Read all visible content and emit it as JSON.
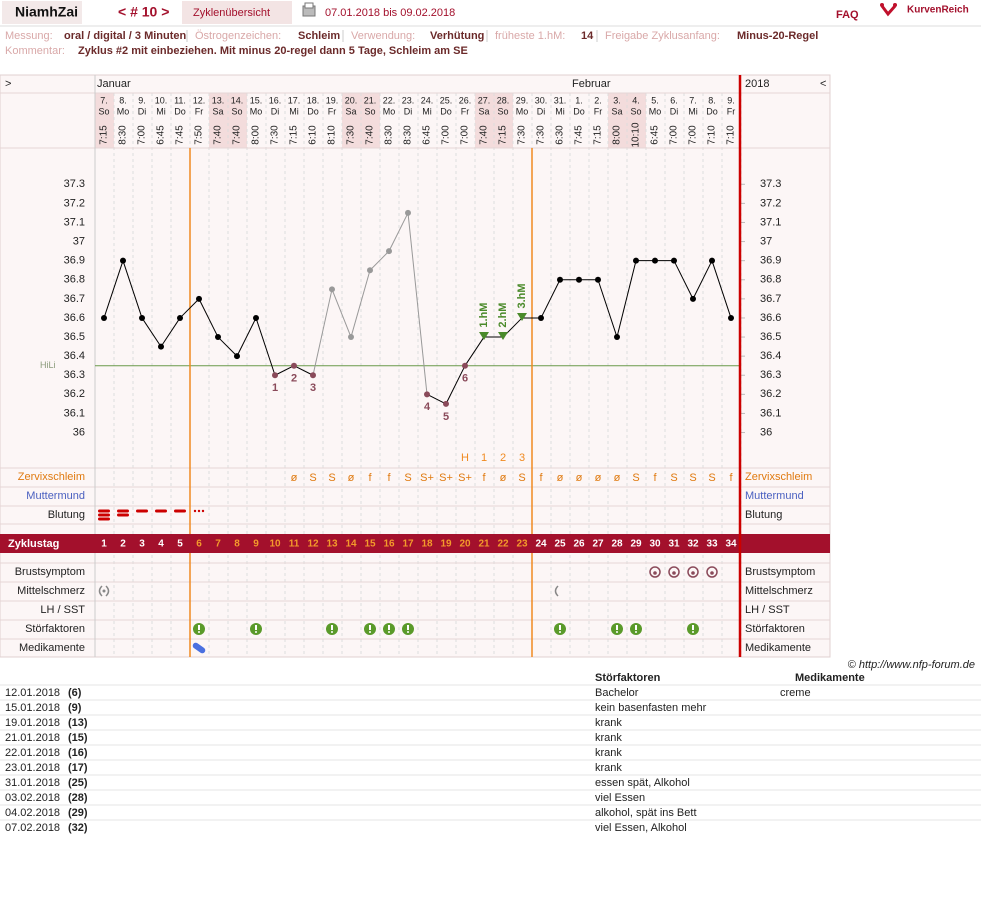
{
  "header": {
    "user": "NiamhZai",
    "cycle_nav": "< # 10 >",
    "overview": "Zyklenübersicht",
    "range": "07.01.2018 bis 09.02.2018",
    "faq": "FAQ",
    "brand": "KurvenReich"
  },
  "info": [
    {
      "label": "Messung:",
      "value": "oral / digital / 3 Minuten"
    },
    {
      "label": "Östrogenzeichen:",
      "value": "Schleim"
    },
    {
      "label": "Verwendung:",
      "value": "Verhütung"
    },
    {
      "label": "früheste 1.hM:",
      "value": "14"
    },
    {
      "label": "Freigabe Zyklusanfang:",
      "value": "Minus-20-Regel"
    }
  ],
  "comment": {
    "label": "Kommentar:",
    "value": "Zyklus #2  mit einbeziehen. Mit minus 20-regel dann 5 Tage,  Schleim am SE"
  },
  "chart_data": {
    "type": "line",
    "nav": [
      ">",
      "<"
    ],
    "months": [
      "Januar",
      "Februar"
    ],
    "year": "2018",
    "dates": [
      "7.",
      "8.",
      "9.",
      "10.",
      "11.",
      "12.",
      "13.",
      "14.",
      "15.",
      "16.",
      "17.",
      "18.",
      "19.",
      "20.",
      "21.",
      "22.",
      "23.",
      "24.",
      "25.",
      "26.",
      "27.",
      "28.",
      "29.",
      "30.",
      "31.",
      "1.",
      "2.",
      "3.",
      "4.",
      "5.",
      "6.",
      "7.",
      "8.",
      "9."
    ],
    "weekdays": [
      "So",
      "Mo",
      "Di",
      "Mi",
      "Do",
      "Fr",
      "Sa",
      "So",
      "Mo",
      "Di",
      "Mi",
      "Do",
      "Fr",
      "Sa",
      "So",
      "Mo",
      "Di",
      "Mi",
      "Do",
      "Fr",
      "Sa",
      "So",
      "Mo",
      "Di",
      "Mi",
      "Do",
      "Fr",
      "Sa",
      "So",
      "Mo",
      "Di",
      "Mi",
      "Do",
      "Fr"
    ],
    "times": [
      "7:15",
      "8:30",
      "7:00",
      "6:45",
      "7:45",
      "7:50",
      "7:40",
      "7:40",
      "8:00",
      "7:30",
      "7:15",
      "6:10",
      "8:10",
      "7:30",
      "7:40",
      "8:30",
      "8:30",
      "6:45",
      "7:00",
      "7:00",
      "7:40",
      "7:15",
      "7:30",
      "7:30",
      "6:30",
      "7:45",
      "7:15",
      "8:00",
      "10:10",
      "6:45",
      "7:00",
      "7:00",
      "7:10",
      "7:10"
    ],
    "values": [
      36.6,
      36.9,
      36.6,
      36.45,
      36.6,
      36.7,
      36.5,
      36.4,
      36.6,
      36.3,
      36.35,
      36.3,
      36.75,
      36.5,
      36.85,
      36.95,
      37.15,
      36.2,
      36.15,
      36.35,
      36.5,
      36.5,
      36.6,
      36.6,
      36.8,
      36.8,
      36.8,
      36.5,
      36.9,
      36.9,
      36.9,
      36.7,
      36.9,
      36.6
    ],
    "line_color": "#000000",
    "point_colors": [
      "#000",
      "#000",
      "#000",
      "#000",
      "#000",
      "#000",
      "#000",
      "#000",
      "#000",
      "#8a4a5a",
      "#8a4a5a",
      "#8a4a5a",
      "#999",
      "#999",
      "#999",
      "#999",
      "#999",
      "#8a4a5a",
      "#8a4a5a",
      "#8a4a5a",
      "#4a8a2a",
      "#4a8a2a",
      "#4a8a2a",
      "#000",
      "#000",
      "#000",
      "#000",
      "#000",
      "#000",
      "#000",
      "#000",
      "#000",
      "#000",
      "#000"
    ],
    "point_labels": [
      null,
      null,
      null,
      null,
      null,
      null,
      null,
      null,
      null,
      "1",
      "2",
      "3",
      null,
      null,
      null,
      null,
      null,
      "4",
      "5",
      "6",
      null,
      null,
      null,
      null,
      null,
      null,
      null,
      null,
      null,
      null,
      null,
      null,
      null,
      null
    ],
    "hm_labels": [
      null,
      null,
      null,
      null,
      null,
      null,
      null,
      null,
      null,
      null,
      null,
      null,
      null,
      null,
      null,
      null,
      null,
      null,
      null,
      null,
      "1.hM",
      "2.hM",
      "3.hM",
      null,
      null,
      null,
      null,
      null,
      null,
      null,
      null,
      null,
      null,
      null
    ],
    "coverline": {
      "label": "HiLi",
      "value": 36.35
    },
    "ylim": [
      35.83,
      37.49
    ],
    "yticks": [
      36,
      36.1,
      36.2,
      36.3,
      36.4,
      36.5,
      36.6,
      36.7,
      36.8,
      36.9,
      37,
      37.1,
      37.2,
      37.3
    ],
    "cycle_days": [
      1,
      2,
      3,
      4,
      5,
      6,
      7,
      8,
      9,
      10,
      11,
      12,
      13,
      14,
      15,
      16,
      17,
      18,
      19,
      20,
      21,
      22,
      23,
      24,
      25,
      26,
      27,
      28,
      29,
      30,
      31,
      32,
      33,
      34
    ],
    "fertile_window": [
      6,
      23
    ],
    "row_labels": {
      "zervix": "Zervixschleim",
      "muttermund": "Muttermund",
      "blutung": "Blutung",
      "zyklustag": "Zyklustag",
      "brust": "Brustsymptom",
      "mittelschmerz": "Mittelschmerz",
      "lh": "LH / SST",
      "stoer": "Störfaktoren",
      "medi": "Medikamente"
    },
    "peak": [
      null,
      null,
      null,
      null,
      null,
      null,
      null,
      null,
      null,
      null,
      null,
      null,
      null,
      null,
      null,
      null,
      null,
      null,
      null,
      "H",
      "1",
      "2",
      "3",
      null,
      null,
      null,
      null,
      null,
      null,
      null,
      null,
      null,
      null,
      null
    ],
    "zervix": [
      null,
      null,
      null,
      null,
      null,
      null,
      null,
      null,
      null,
      null,
      "ø",
      "S",
      "S",
      "ø",
      "f",
      "f",
      "S",
      "S+",
      "S+",
      "S+",
      "f",
      "ø",
      "S",
      "f",
      "ø",
      "ø",
      "ø",
      "ø",
      "S",
      "f",
      "S",
      "S",
      "S",
      "f"
    ],
    "blutung": {
      "days": [
        1,
        2,
        3,
        4,
        5,
        6
      ],
      "levels": [
        3,
        2,
        1,
        1,
        1,
        0
      ]
    },
    "brust_days": [
      30,
      31,
      32,
      33
    ],
    "mittelschmerz_days": [
      1,
      25
    ],
    "stoer_days": [
      6,
      9,
      13,
      15,
      16,
      17,
      25,
      28,
      29,
      32
    ],
    "medi_days": [
      6
    ]
  },
  "footer": {
    "copyright": "© http://www.nfp-forum.de"
  },
  "notes": {
    "headers": [
      "Störfaktoren",
      "Medikamente"
    ],
    "rows": [
      [
        "12.01.2018",
        "(6)",
        "Bachelor",
        "creme"
      ],
      [
        "15.01.2018",
        "(9)",
        "kein basenfasten mehr",
        null
      ],
      [
        "19.01.2018",
        "(13)",
        "krank",
        null
      ],
      [
        "21.01.2018",
        "(15)",
        "krank",
        null
      ],
      [
        "22.01.2018",
        "(16)",
        "krank",
        null
      ],
      [
        "23.01.2018",
        "(17)",
        "krank",
        null
      ],
      [
        "31.01.2018",
        "(25)",
        "essen spät, Alkohol",
        null
      ],
      [
        "03.02.2018",
        "(28)",
        "viel Essen",
        null
      ],
      [
        "04.02.2018",
        "(29)",
        "alkohol, spät ins Bett",
        null
      ],
      [
        "07.02.2018",
        "(32)",
        "viel Essen, Alkohol",
        null
      ]
    ]
  }
}
